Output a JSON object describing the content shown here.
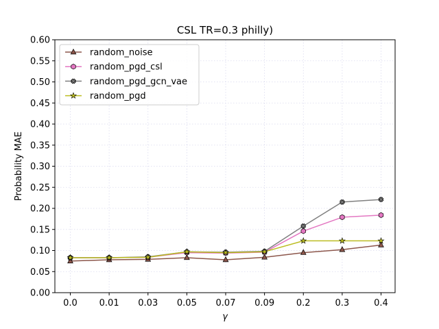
{
  "chart_data": {
    "type": "line",
    "title": "CSL TR=0.3 philly)",
    "xlabel": "γ",
    "ylabel": "Probability MAE",
    "categories": [
      "0.0",
      "0.01",
      "0.03",
      "0.05",
      "0.07",
      "0.09",
      "0.2",
      "0.3",
      "0.4"
    ],
    "ylim": [
      0,
      0.6
    ],
    "yticks": [
      "0.00",
      "0.05",
      "0.10",
      "0.15",
      "0.20",
      "0.25",
      "0.30",
      "0.35",
      "0.40",
      "0.45",
      "0.50",
      "0.55",
      "0.60"
    ],
    "grid": true,
    "legend_position": "top-left",
    "series": [
      {
        "name": "random_noise",
        "color": "#8c564b",
        "marker": "triangle",
        "values": [
          0.075,
          0.078,
          0.079,
          0.083,
          0.078,
          0.084,
          0.095,
          0.102,
          0.113
        ]
      },
      {
        "name": "random_pgd_csl",
        "color": "#e377c2",
        "marker": "hexagon",
        "values": [
          0.083,
          0.083,
          0.084,
          0.095,
          0.094,
          0.096,
          0.146,
          0.179,
          0.184
        ]
      },
      {
        "name": "random_pgd_gcn_vae",
        "color": "#7f7f7f",
        "marker": "x",
        "values": [
          0.083,
          0.083,
          0.085,
          0.097,
          0.096,
          0.098,
          0.158,
          0.215,
          0.221
        ]
      },
      {
        "name": "random_pgd",
        "color": "#bcbd22",
        "marker": "star",
        "values": [
          0.083,
          0.083,
          0.084,
          0.097,
          0.095,
          0.097,
          0.123,
          0.123,
          0.123
        ]
      }
    ]
  }
}
